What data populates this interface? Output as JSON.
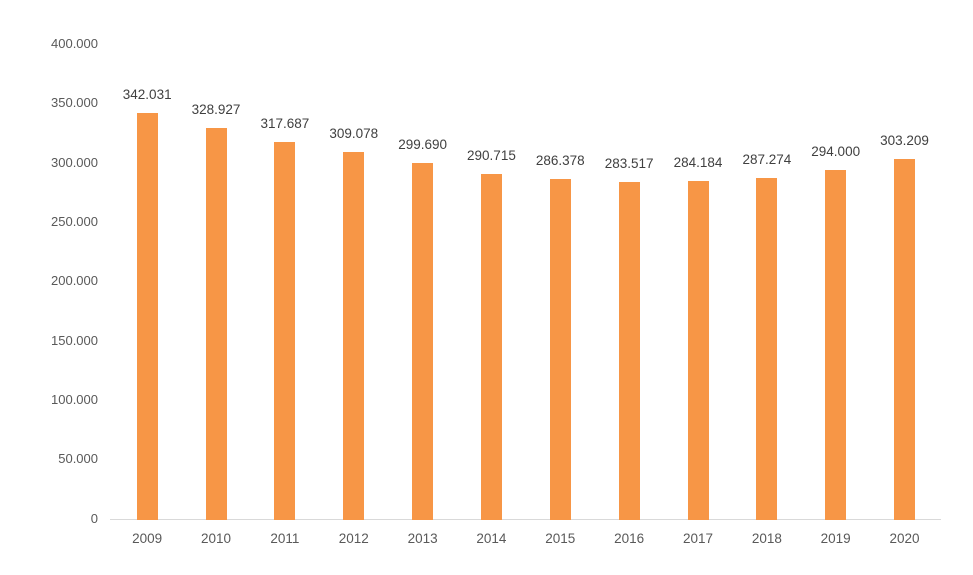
{
  "chart_data": {
    "type": "bar",
    "title": "",
    "xlabel": "",
    "ylabel": "",
    "categories": [
      "2009",
      "2010",
      "2011",
      "2012",
      "2013",
      "2014",
      "2015",
      "2016",
      "2017",
      "2018",
      "2019",
      "2020"
    ],
    "values": [
      342031,
      328927,
      317687,
      309078,
      299690,
      290715,
      286378,
      283517,
      284184,
      287274,
      294000,
      303209
    ],
    "value_labels": [
      "342.031",
      "328.927",
      "317.687",
      "309.078",
      "299.690",
      "290.715",
      "286.378",
      "283.517",
      "284.184",
      "287.274",
      "294.000",
      "303.209"
    ],
    "ylim": [
      0,
      400000
    ],
    "y_tick_values": [
      0,
      50000,
      100000,
      150000,
      200000,
      250000,
      300000,
      350000,
      400000
    ],
    "y_tick_labels": [
      "0",
      "50.000",
      "100.000",
      "150.000",
      "200.000",
      "250.000",
      "300.000",
      "350.000",
      "400.000"
    ],
    "grid": false,
    "legend": "none",
    "colors": {
      "bar": "#F79646",
      "value_label_text": "#404040",
      "axis_text": "#595959",
      "axis_line": "#D9D9D9",
      "background": "#FFFFFF"
    }
  }
}
